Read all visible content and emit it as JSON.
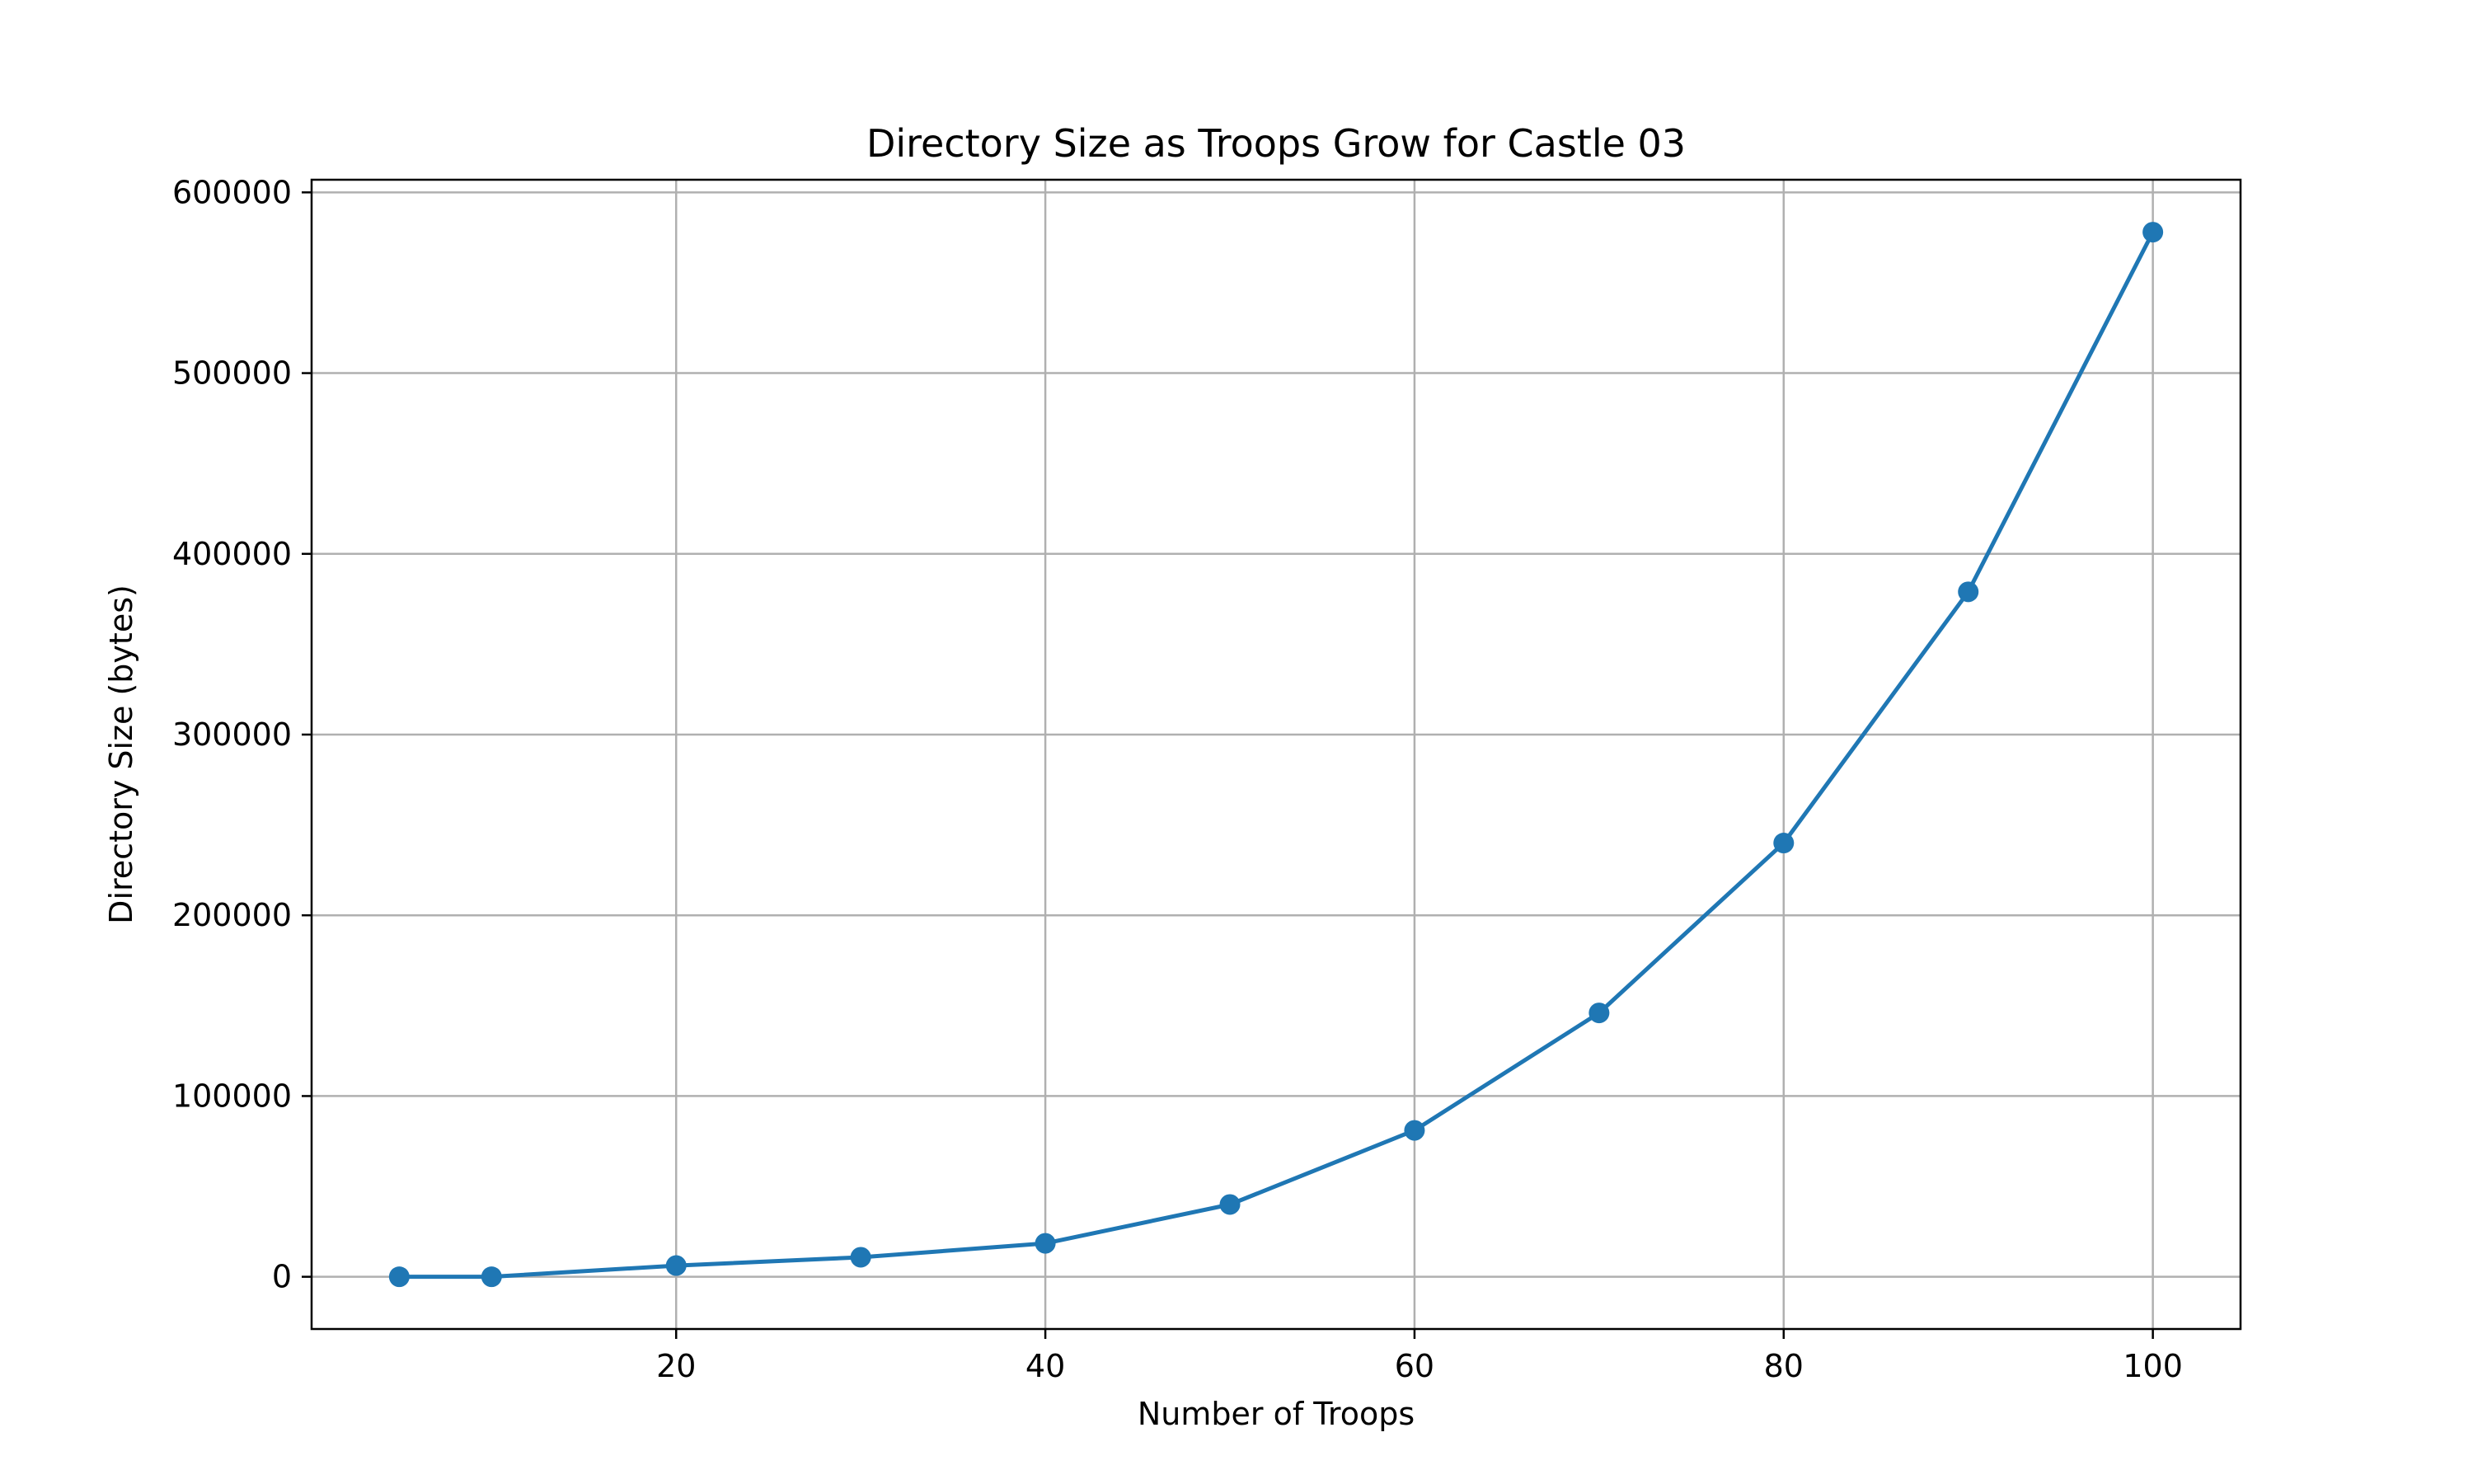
{
  "chart_data": {
    "type": "line",
    "title": "Directory Size as Troops Grow for Castle 03",
    "xlabel": "Number of Troops",
    "ylabel": "Directory Size (bytes)",
    "xlim": [
      0.25,
      104.75
    ],
    "ylim": [
      -28900,
      607000
    ],
    "xticks": [
      20,
      40,
      60,
      80,
      100
    ],
    "yticks": [
      0,
      100000,
      200000,
      300000,
      400000,
      500000,
      600000
    ],
    "grid": true,
    "legend": "none",
    "series": [
      {
        "color": "#1f77b4",
        "marker": "circle",
        "x": [
          5,
          10,
          20,
          30,
          40,
          50,
          60,
          70,
          80,
          90,
          100
        ],
        "y": [
          0,
          0,
          6200,
          10800,
          18500,
          40000,
          81000,
          146000,
          240000,
          379000,
          578000
        ]
      }
    ]
  }
}
